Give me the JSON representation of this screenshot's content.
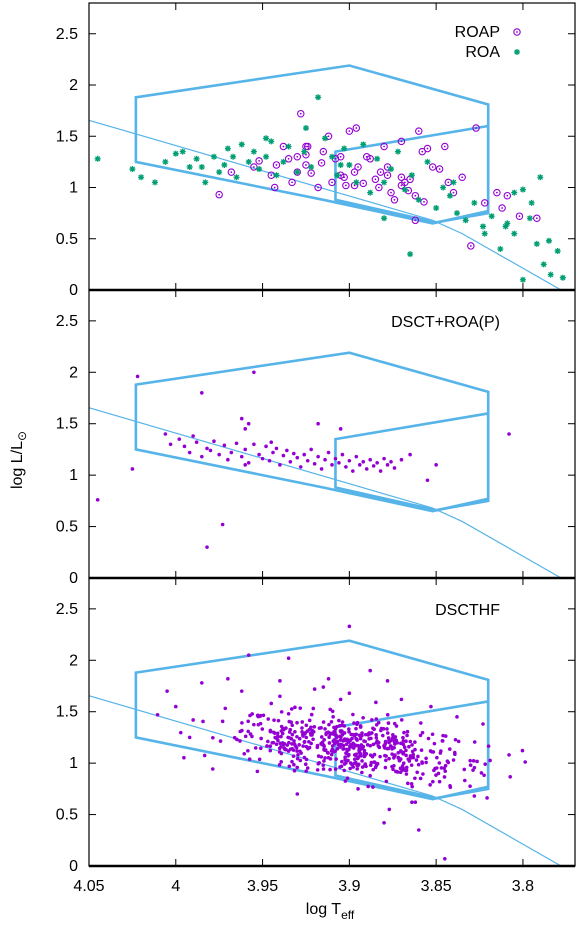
{
  "figure": {
    "ylabel": "log L/L",
    "ylabel_symbol": "⊙",
    "xlabel": "log T",
    "xlabel_sub": "eff"
  },
  "colors": {
    "axes": "#000000",
    "box": "#56b4e9",
    "zams": "#56b4e9",
    "roap": "#9400d3",
    "roa": "#009e73",
    "dsct": "#9400d3"
  },
  "chart_data": [
    {
      "type": "scatter",
      "title": "",
      "xlabel": "log T_eff",
      "ylabel": "",
      "xlim": [
        4.05,
        3.77
      ],
      "ylim": [
        0,
        2.8
      ],
      "x_reversed": true,
      "xticks": [],
      "yticks": [
        "0",
        "0.5",
        "1",
        "1.5",
        "2",
        "2.5"
      ],
      "legend_position": "top-right",
      "grid": false,
      "series": [
        {
          "name": "ROAP",
          "marker": "open-circle-dot",
          "x": [
            3.968,
            3.975,
            3.93,
            3.925,
            3.912,
            3.925,
            3.952,
            3.955,
            3.945,
            3.93,
            3.924,
            3.905,
            3.908,
            3.916,
            3.903,
            3.895,
            3.905,
            3.922,
            3.933,
            3.943,
            3.938,
            3.935,
            3.925,
            3.915,
            3.91,
            3.902,
            3.897,
            3.897,
            3.89,
            3.88,
            3.892,
            3.883,
            3.878,
            3.87,
            3.866,
            3.868,
            3.874,
            3.857,
            3.87,
            3.862,
            3.878,
            3.882,
            3.888,
            3.876,
            3.865,
            3.855,
            3.848,
            3.845,
            3.835,
            3.84,
            3.858,
            3.843,
            3.827,
            3.86,
            3.852,
            3.822,
            3.815,
            3.809,
            3.802,
            3.792,
            3.812,
            3.928,
            3.896,
            3.87,
            3.83,
            3.862,
            3.918,
            3.942,
            3.9,
            3.885
          ],
          "y": [
            1.15,
            0.93,
            1.15,
            1.32,
            1.5,
            1.4,
            1.26,
            1.2,
            1.12,
            1.3,
            1.4,
            1.3,
            1.28,
            1.24,
            1.1,
            1.2,
            1.12,
            1.14,
            1.05,
            1.0,
            1.4,
            1.28,
            1.22,
            1.35,
            1.05,
            1.02,
            1.02,
            1.15,
            1.3,
            1.4,
            1.04,
            1.0,
            1.12,
            1.02,
            0.97,
            1.05,
            0.88,
            0.86,
            1.1,
            0.92,
            1.2,
            1.15,
            1.28,
            0.95,
            1.08,
            1.38,
            1.18,
            1.4,
            1.1,
            0.95,
            1.35,
            1.05,
            1.58,
            1.55,
            1.2,
            0.85,
            0.95,
            0.92,
            0.72,
            0.7,
            0.8,
            1.72,
            1.58,
            1.45,
            0.43,
            0.68,
            1.0,
            1.22,
            1.55,
            1.08
          ]
        },
        {
          "name": "ROA",
          "marker": "star",
          "x": [
            4.045,
            4.025,
            4.02,
            4.012,
            4.006,
            4.0,
            3.996,
            3.992,
            3.988,
            3.985,
            3.983,
            3.978,
            3.975,
            3.972,
            3.97,
            3.967,
            3.965,
            3.962,
            3.958,
            3.955,
            3.952,
            3.948,
            3.945,
            3.942,
            3.938,
            3.935,
            3.93,
            3.926,
            3.922,
            3.918,
            3.914,
            3.91,
            3.907,
            3.903,
            3.9,
            3.896,
            3.892,
            3.888,
            3.884,
            3.88,
            3.876,
            3.872,
            3.868,
            3.864,
            3.86,
            3.855,
            3.85,
            3.846,
            3.842,
            3.838,
            3.833,
            3.828,
            3.822,
            3.818,
            3.813,
            3.809,
            3.805,
            3.8,
            3.796,
            3.792,
            3.788,
            3.784,
            3.78,
            3.777,
            3.84,
            3.823,
            3.805,
            3.79,
            3.785,
            3.795,
            3.905,
            3.925,
            3.948,
            3.88,
            3.865,
            3.8,
            3.81
          ],
          "y": [
            1.28,
            1.18,
            1.1,
            1.05,
            1.25,
            1.33,
            1.35,
            1.2,
            1.28,
            1.2,
            1.05,
            1.3,
            1.15,
            1.22,
            1.38,
            1.3,
            1.1,
            1.42,
            1.25,
            1.35,
            1.18,
            1.3,
            1.45,
            1.12,
            1.25,
            1.4,
            1.15,
            1.35,
            1.2,
            1.88,
            1.48,
            1.3,
            1.12,
            1.38,
            1.22,
            1.05,
            1.42,
            0.95,
            1.28,
            1.05,
            1.18,
            1.35,
            0.98,
            1.12,
            0.88,
            1.25,
            0.8,
            1.0,
            0.92,
            0.75,
            0.68,
            0.85,
            0.55,
            0.72,
            0.4,
            0.65,
            0.55,
            0.98,
            0.7,
            0.45,
            0.25,
            0.15,
            0.38,
            0.12,
            1.05,
            0.62,
            0.95,
            1.1,
            0.48,
            0.85,
            1.22,
            1.58,
            1.48,
            0.7,
            0.35,
            0.1,
            0.62
          ]
        }
      ]
    },
    {
      "type": "scatter",
      "title": "",
      "xlabel": "",
      "ylabel": "log L/L⊙",
      "xlim": [
        4.05,
        3.77
      ],
      "ylim": [
        0,
        2.8
      ],
      "x_reversed": true,
      "xticks": [],
      "yticks": [
        "0",
        "0.5",
        "1",
        "1.5",
        "2",
        "2.5"
      ],
      "annotation": "DSCT+ROA(P)",
      "grid": false,
      "series": [
        {
          "marker": "dot",
          "x": [
            3.973,
            3.982,
            3.985,
            4.045,
            4.025,
            4.022,
            3.955,
            3.962,
            3.96,
            3.958,
            3.918,
            3.905,
            3.87,
            3.85,
            3.808,
            3.865,
            3.855,
            4.003,
            3.998,
            3.995,
            3.992,
            3.988,
            3.985,
            3.982,
            3.98,
            3.978,
            3.975,
            3.972,
            3.97,
            3.968,
            3.965,
            3.962,
            3.96,
            3.958,
            3.955,
            3.952,
            3.95,
            3.948,
            3.946,
            3.944,
            3.942,
            3.94,
            3.938,
            3.936,
            3.934,
            3.932,
            3.93,
            3.928,
            3.926,
            3.924,
            3.922,
            3.92,
            3.918,
            3.916,
            3.914,
            3.912,
            3.91,
            3.908,
            3.906,
            3.904,
            3.902,
            3.9,
            3.898,
            3.896,
            3.894,
            3.892,
            3.89,
            3.888,
            3.886,
            3.884,
            3.882,
            3.88,
            3.878,
            3.876,
            3.874,
            4.006,
            3.99,
            3.96,
            3.945
          ],
          "y": [
            0.52,
            0.3,
            1.8,
            0.76,
            1.06,
            1.96,
            2.0,
            1.55,
            1.45,
            1.5,
            1.5,
            1.45,
            1.15,
            1.1,
            1.4,
            1.2,
            0.95,
            1.3,
            1.35,
            1.28,
            1.22,
            1.32,
            1.18,
            1.26,
            1.24,
            1.33,
            1.2,
            1.29,
            1.15,
            1.22,
            1.31,
            1.18,
            1.25,
            1.12,
            1.3,
            1.2,
            1.16,
            1.28,
            1.14,
            1.22,
            1.26,
            1.1,
            1.19,
            1.24,
            1.13,
            1.21,
            1.17,
            1.08,
            1.2,
            1.14,
            1.25,
            1.11,
            1.18,
            1.06,
            1.15,
            1.22,
            1.1,
            1.16,
            1.12,
            1.2,
            1.08,
            1.14,
            1.04,
            1.18,
            1.1,
            1.13,
            1.06,
            1.15,
            1.09,
            1.12,
            1.04,
            1.16,
            1.1,
            1.13,
            1.07,
            1.4,
            1.38,
            1.1,
            1.32
          ]
        }
      ]
    },
    {
      "type": "scatter",
      "title": "",
      "xlabel": "log T_eff",
      "ylabel": "",
      "xlim": [
        4.05,
        3.77
      ],
      "ylim": [
        0,
        2.8
      ],
      "x_reversed": true,
      "xticks": [
        "4.05",
        "4",
        "3.95",
        "3.9",
        "3.85",
        "3.8"
      ],
      "yticks": [
        "0",
        "0.5",
        "1",
        "1.5",
        "2",
        "2.5"
      ],
      "annotation": "DSCTHF",
      "grid": false,
      "series": [
        {
          "marker": "dot",
          "x": [
            3.9,
            3.958,
            3.935,
            3.845,
            3.86,
            3.88,
            3.828,
            3.808,
            3.895,
            3.97,
            3.985,
            4.005,
            4.0,
            3.99,
            3.94,
            3.912,
            3.87,
            3.853,
            3.823,
            3.838,
            3.862,
            3.953,
            3.93,
            3.877,
            3.94,
            3.92,
            3.945,
            3.888,
            3.858,
            3.848,
            3.842,
            3.905,
            3.992,
            3.878,
            3.962,
            3.915,
            3.935,
            3.9
          ],
          "y": [
            2.33,
            2.05,
            2.02,
            0.07,
            0.35,
            0.42,
            0.68,
            1.08,
            0.75,
            1.82,
            1.78,
            1.7,
            1.55,
            1.42,
            1.8,
            1.82,
            1.62,
            1.55,
            1.38,
            1.45,
            0.62,
            0.92,
            0.7,
            0.55,
            1.65,
            1.72,
            1.58,
            1.9,
            1.0,
            0.82,
            0.78,
            1.62,
            1.25,
            1.8,
            1.7,
            1.74,
            1.48,
            1.68
          ]
        }
      ]
    }
  ]
}
